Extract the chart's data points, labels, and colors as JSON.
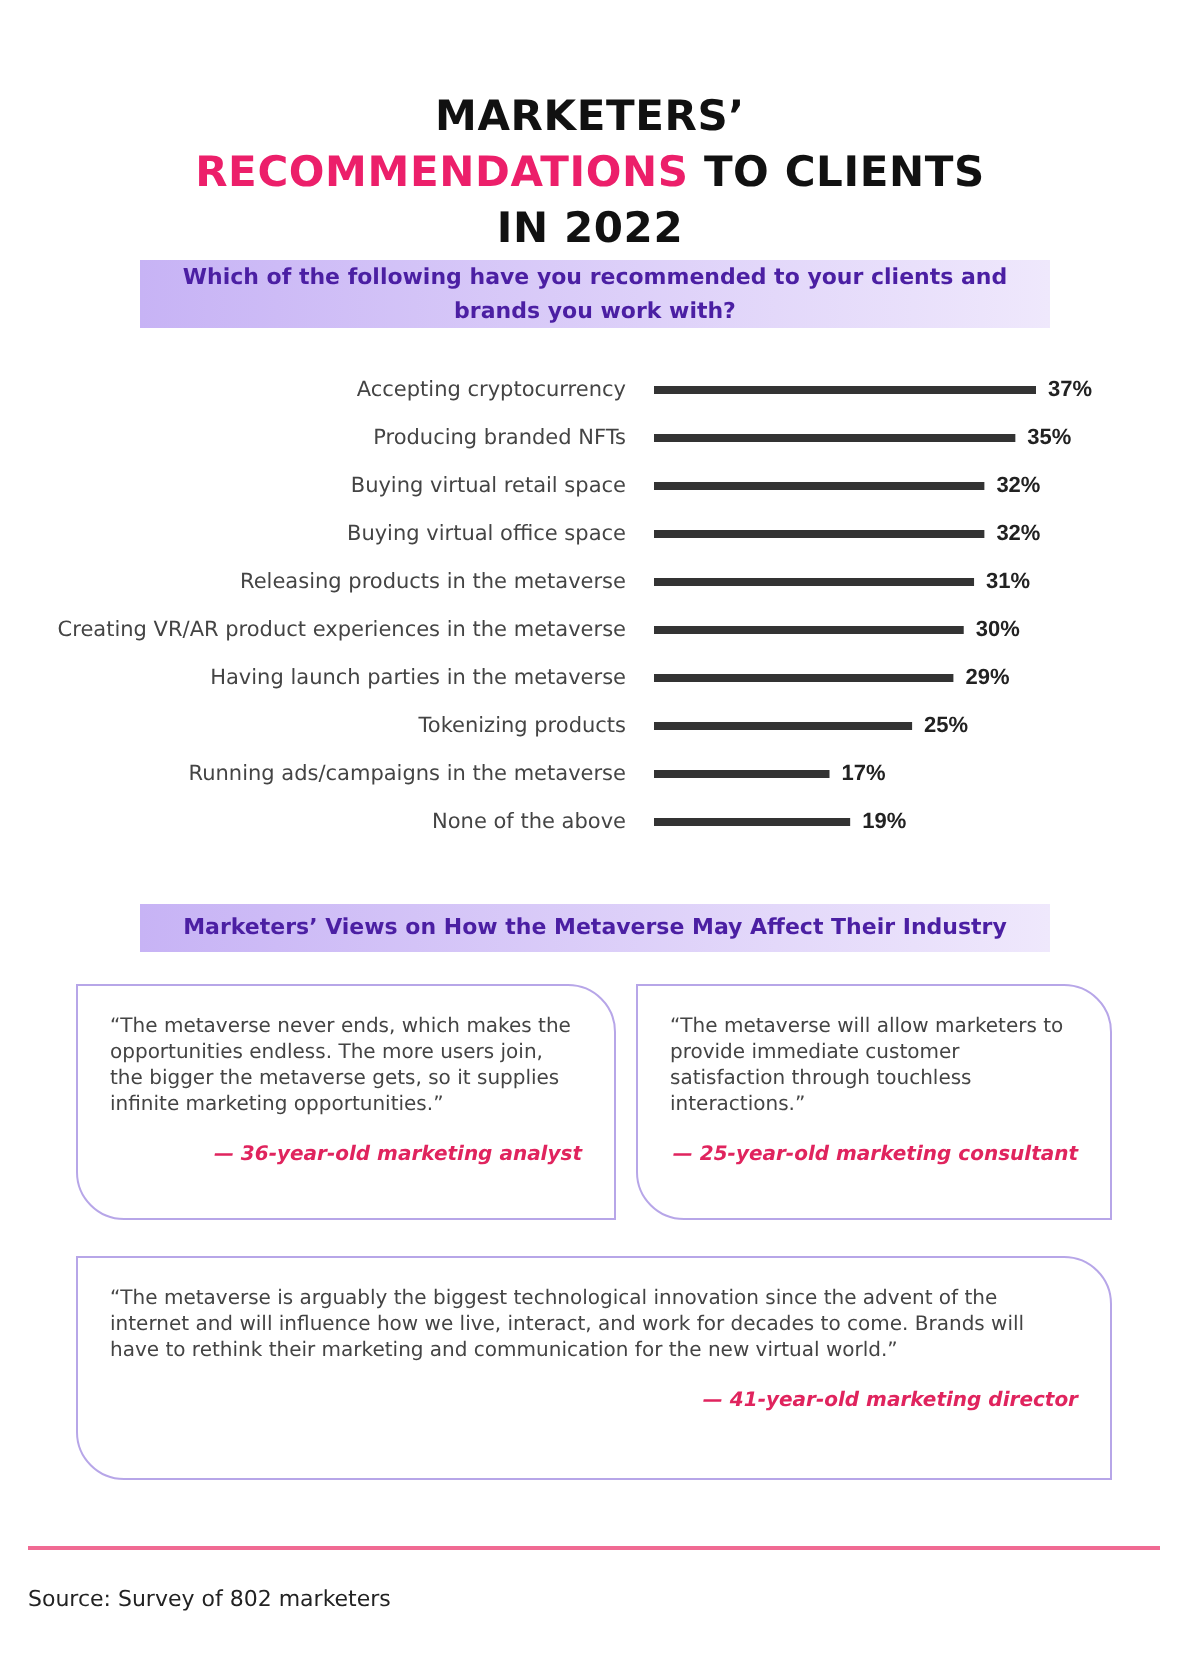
{
  "chart_data": {
    "type": "bar",
    "orientation": "horizontal",
    "title": "MARKETERS’ RECOMMENDATIONS TO CLIENTS IN 2022",
    "subtitle": "Which of the following have you recommended to your clients and brands you work with?",
    "categories": [
      "Accepting cryptocurrency",
      "Producing branded NFTs",
      "Buying virtual retail space",
      "Buying virtual office space",
      "Releasing products in the metaverse",
      "Creating VR/AR product experiences in the metaverse",
      "Having launch parties in the metaverse",
      "Tokenizing products",
      "Running ads/campaigns in the metaverse",
      "None of the above"
    ],
    "values": [
      37,
      35,
      32,
      32,
      31,
      30,
      29,
      25,
      17,
      19
    ],
    "value_labels": [
      "37%",
      "35%",
      "32%",
      "32%",
      "31%",
      "30%",
      "29%",
      "25%",
      "17%",
      "19%"
    ],
    "color": "#333333",
    "annotations": [
      "Marketers’ Views on How the Metaverse May Affect Their Industry",
      "“The metaverse never ends, which makes the opportunities endless. The more users join, the bigger the metaverse gets, so it supplies infinite marketing opportunities.”",
      "— 36-year-old marketing analyst",
      "“The metaverse will allow marketers to provide immediate customer satisfaction through touchless interactions.”",
      "— 25-year-old marketing consultant",
      "“The metaverse is arguably the biggest technological innovation since the advent of the internet and will influence how we live, interact, and work for decades to come. Brands will have to rethink their marketing and communication for the new virtual world.”",
      "— 41-year-old marketing director",
      "Source: Survey of 802 marketers"
    ]
  }
}
